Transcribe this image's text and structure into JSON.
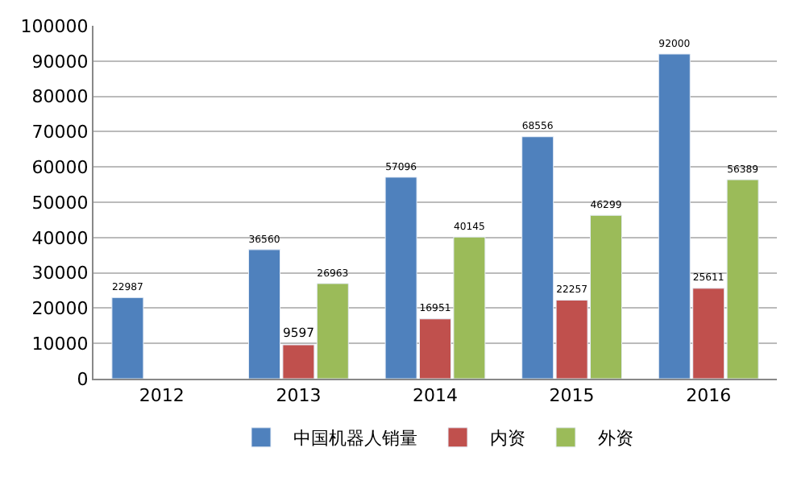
{
  "chart_data": {
    "type": "bar",
    "categories": [
      "2012",
      "2013",
      "2014",
      "2015",
      "2016"
    ],
    "series": [
      {
        "name": "中国机器人销量",
        "color": "#4f81bd",
        "values": [
          22987,
          36560,
          57096,
          68556,
          92000
        ]
      },
      {
        "name": "内资",
        "color": "#c0504d",
        "values": [
          null,
          9597,
          16951,
          22257,
          25611
        ]
      },
      {
        "name": "外资",
        "color": "#9bbb59",
        "values": [
          null,
          26963,
          40145,
          46299,
          56389
        ]
      }
    ],
    "ylim": [
      0,
      100000
    ],
    "yticks": [
      0,
      10000,
      20000,
      30000,
      40000,
      50000,
      60000,
      70000,
      80000,
      90000,
      100000
    ],
    "grid": "y",
    "legend": "bottom",
    "data_labels": true
  }
}
